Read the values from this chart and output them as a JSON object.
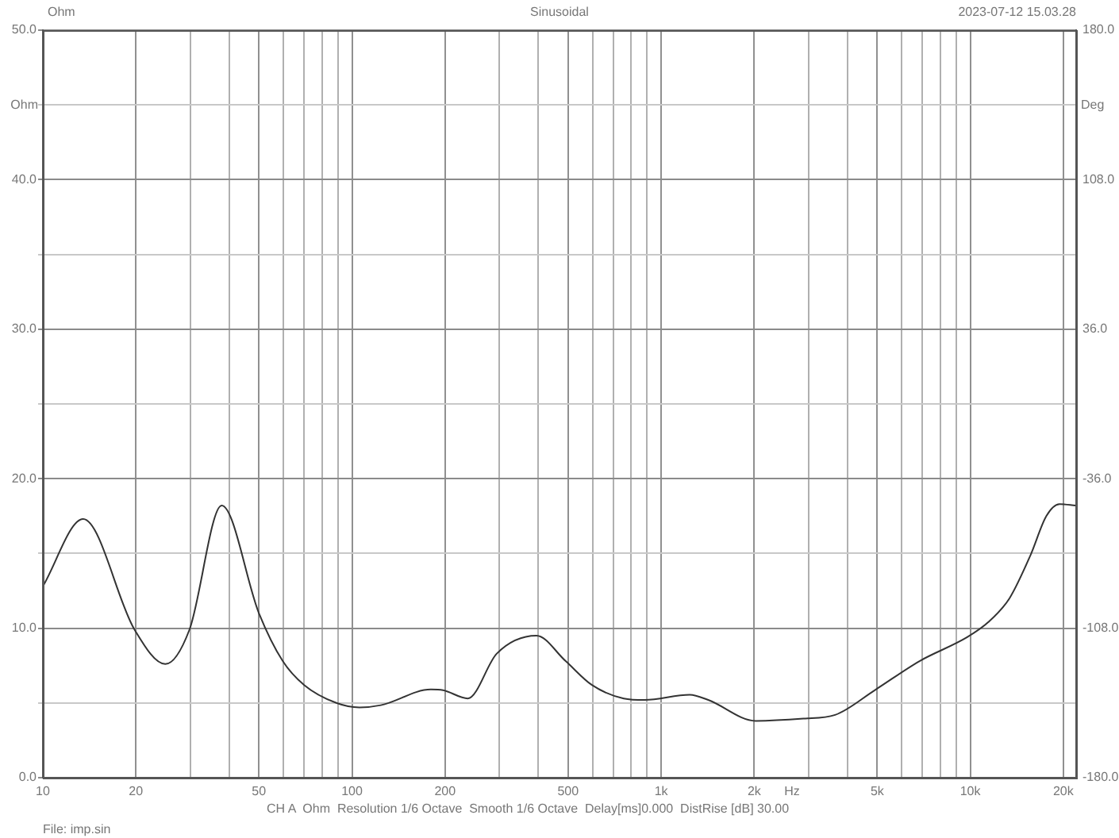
{
  "chart_data": {
    "type": "line",
    "title": "Sinusoidal",
    "xlabel": "Hz",
    "ylabel": "Ohm",
    "y2label": "Deg",
    "annotations": [
      "Ohm",
      "2023-07-12 15.03.28",
      "CH A  Ohm  Resolution 1/6 Octave  Smooth 1/6 Octave  Delay[ms]0.000  DistRise [dB] 30.00",
      "File: imp.sin"
    ],
    "x": [
      10,
      13.5,
      19.8,
      24.9,
      29.8,
      37.9,
      50,
      59.7,
      70,
      89,
      105.7,
      124,
      180,
      197,
      237,
      294,
      395,
      491,
      597,
      757,
      885,
      1237,
      1420,
      2023,
      2884,
      3654,
      4906,
      6855,
      9772,
      11430,
      13390,
      15670,
      17620,
      19440,
      21880
    ],
    "series": [
      {
        "color": "#333333",
        "values": [
          12.8,
          17.3,
          9.9,
          7.6,
          9.9,
          18.2,
          11.0,
          7.8,
          6.2,
          5.0,
          4.7,
          4.85,
          5.9,
          5.85,
          5.3,
          8.3,
          9.5,
          7.8,
          6.2,
          5.3,
          5.2,
          5.55,
          5.2,
          3.8,
          3.95,
          4.2,
          5.85,
          7.8,
          9.4,
          10.4,
          12.0,
          14.9,
          17.5,
          18.3,
          18.2
        ]
      }
    ],
    "log": "x",
    "xlim": [
      10,
      22000
    ],
    "xticks": [
      10,
      {
        "value": 20,
        "label": "20"
      },
      {
        "value": 30,
        "label": null
      },
      {
        "value": 40,
        "label": null
      },
      50,
      {
        "value": 60,
        "label": null
      },
      {
        "value": 70,
        "label": null
      },
      {
        "value": 80,
        "label": null
      },
      {
        "value": 90,
        "label": null
      },
      100,
      200,
      {
        "value": 300,
        "label": null
      },
      {
        "value": 400,
        "label": null
      },
      500,
      {
        "value": 600,
        "label": null
      },
      {
        "value": 700,
        "label": null
      },
      {
        "value": 800,
        "label": null
      },
      {
        "value": 900,
        "label": null
      },
      {
        "value": 1000,
        "label": "1k"
      },
      {
        "value": 2000,
        "label": "2k"
      },
      {
        "value": 3000,
        "label": null
      },
      {
        "value": 4000,
        "label": null
      },
      {
        "value": 5000,
        "label": "5k"
      },
      {
        "value": 6000,
        "label": null
      },
      {
        "value": 7000,
        "label": null
      },
      {
        "value": 8000,
        "label": null
      },
      {
        "value": 9000,
        "label": null
      },
      {
        "value": 10000,
        "label": "10k"
      },
      {
        "value": 20000,
        "label": "20k"
      }
    ],
    "ylim": [
      0,
      50
    ],
    "yticks": [
      {
        "value": 0,
        "label": "0.0"
      },
      {
        "value": 5,
        "label": null
      },
      {
        "value": 10,
        "label": "10.0"
      },
      {
        "value": 15,
        "label": null
      },
      {
        "value": 20,
        "label": "20.0"
      },
      {
        "value": 25,
        "label": null
      },
      {
        "value": 30,
        "label": "30.0"
      },
      {
        "value": 35,
        "label": null
      },
      {
        "value": 40,
        "label": "40.0"
      },
      {
        "value": 45,
        "label": null
      },
      {
        "value": 50,
        "label": "50.0"
      }
    ],
    "y2lim": [
      -180,
      180
    ],
    "y2ticks": [
      {
        "value": -180,
        "label": "-180.0"
      },
      {
        "value": -144,
        "label": null
      },
      {
        "value": -108,
        "label": "-108.0"
      },
      {
        "value": -72,
        "label": null
      },
      {
        "value": -36,
        "label": "-36.0"
      },
      {
        "value": 0,
        "label": null
      },
      {
        "value": 36,
        "label": "36.0"
      },
      {
        "value": 72,
        "label": null
      },
      {
        "value": 108,
        "label": "108.0"
      },
      {
        "value": 144,
        "label": null
      },
      {
        "value": 180,
        "label": "180.0"
      }
    ],
    "grid": true,
    "marker": "none",
    "line_style": "solid"
  }
}
